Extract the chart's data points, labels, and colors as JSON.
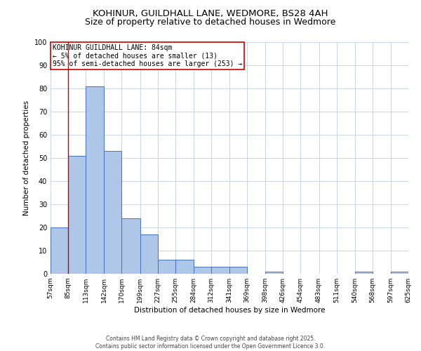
{
  "title_line1": "KOHINUR, GUILDHALL LANE, WEDMORE, BS28 4AH",
  "title_line2": "Size of property relative to detached houses in Wedmore",
  "xlabel": "Distribution of detached houses by size in Wedmore",
  "ylabel": "Number of detached properties",
  "bin_edges": [
    57,
    85,
    113,
    142,
    170,
    199,
    227,
    255,
    284,
    312,
    341,
    369,
    398,
    426,
    454,
    483,
    511,
    540,
    568,
    597,
    625
  ],
  "bar_values": [
    20,
    51,
    81,
    53,
    24,
    17,
    6,
    6,
    3,
    3,
    3,
    0,
    1,
    0,
    0,
    0,
    0,
    1,
    0,
    1
  ],
  "bar_color": "#aec6e8",
  "bar_edge_color": "#4472c4",
  "vline_x": 85,
  "vline_color": "#cc0000",
  "annotation_text": "KOHINUR GUILDHALL LANE: 84sqm\n← 5% of detached houses are smaller (13)\n95% of semi-detached houses are larger (253) →",
  "annotation_box_color": "#cc0000",
  "ylim": [
    0,
    100
  ],
  "yticks": [
    0,
    10,
    20,
    30,
    40,
    50,
    60,
    70,
    80,
    90,
    100
  ],
  "footnote_line1": "Contains HM Land Registry data © Crown copyright and database right 2025.",
  "footnote_line2": "Contains public sector information licensed under the Open Government Licence 3.0.",
  "bg_color": "#ffffff",
  "grid_color": "#c8d4e8",
  "title_fontsize": 9.5,
  "axis_label_fontsize": 7.5,
  "tick_fontsize": 6.5,
  "annotation_fontsize": 7.0,
  "footnote_fontsize": 5.5
}
